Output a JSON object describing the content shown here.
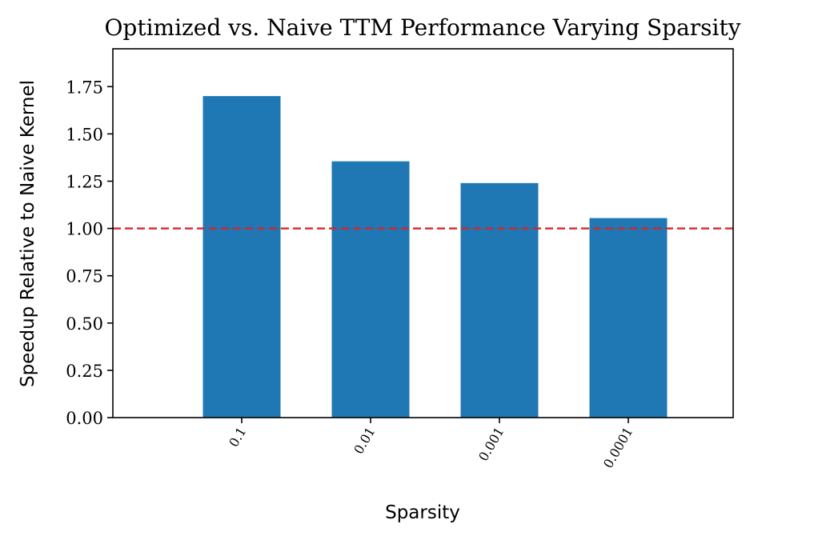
{
  "chart_data": {
    "type": "bar",
    "title": "Optimized vs. Naive TTM Performance Varying Sparsity",
    "xlabel": "Sparsity",
    "ylabel": "Speedup Relative to Naive Kernel",
    "categories": [
      "0.1",
      "0.01",
      "0.001",
      "0.0001"
    ],
    "values": [
      1.7,
      1.355,
      1.24,
      1.055
    ],
    "ylim": [
      0,
      1.95
    ],
    "yticks": [
      "0.00",
      "0.25",
      "0.50",
      "0.75",
      "1.00",
      "1.25",
      "1.50",
      "1.75"
    ],
    "reference_line": {
      "y": 1.0,
      "style": "dashed",
      "color": "#d62728"
    },
    "bar_color": "#1f77b4",
    "grid": false,
    "legend": "none"
  }
}
